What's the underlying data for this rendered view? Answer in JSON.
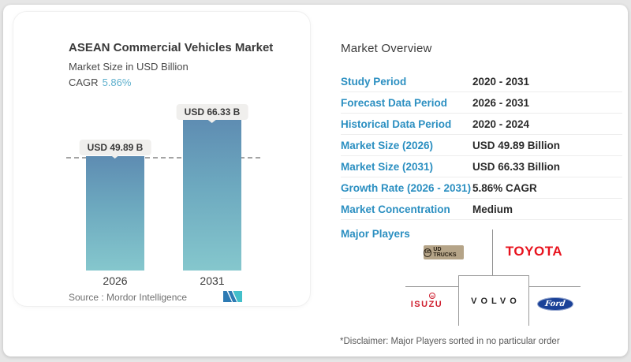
{
  "chart_card": {
    "title": "ASEAN Commercial Vehicles Market",
    "subtitle": "Market Size in USD Billion",
    "cagr_label": "CAGR",
    "cagr_value": "5.86%",
    "source_label": "Source :  Mordor Intelligence"
  },
  "chart_data": {
    "type": "bar",
    "title": "ASEAN Commercial Vehicles Market",
    "subtitle": "Market Size in USD Billion",
    "unit": "USD Billion",
    "cagr": "5.86%",
    "categories": [
      "2026",
      "2031"
    ],
    "values": [
      49.89,
      66.33
    ],
    "bar_value_labels": [
      "USD 49.89 B",
      "USD 66.33 B"
    ],
    "reference_line": "dashed line at 2026 value (49.89)",
    "ylim": [
      0,
      66.33
    ],
    "grid": false,
    "legend": "none",
    "colors": {
      "bar_gradient_top": "#5e8cb2",
      "bar_gradient_bottom": "#85c7cd",
      "dashed_line": "#a4a4a4",
      "value_pill_bg": "#f0efed"
    }
  },
  "overview": {
    "title": "Market Overview",
    "rows": [
      {
        "label": "Study Period",
        "value": "2020 - 2031"
      },
      {
        "label": "Forecast Data Period",
        "value": "2026 - 2031"
      },
      {
        "label": "Historical Data Period",
        "value": "2020 - 2024"
      },
      {
        "label": "Market Size (2026)",
        "value": "USD 49.89 Billion"
      },
      {
        "label": "Market Size (2031)",
        "value": "USD 66.33 Billion"
      },
      {
        "label": "Growth Rate (2026 - 2031)",
        "value": "5.86% CAGR"
      },
      {
        "label": "Market Concentration",
        "value": "Medium"
      }
    ],
    "major_players_label": "Major Players",
    "players": [
      {
        "name": "UD Trucks",
        "display": "UD TRUCKS",
        "emblem": "UD"
      },
      {
        "name": "Toyota",
        "display": "TOYOTA"
      },
      {
        "name": "Isuzu",
        "display": "ISUZU",
        "emblem": "M"
      },
      {
        "name": "Volvo",
        "display": "VOLVO"
      },
      {
        "name": "Ford",
        "display": "Ford"
      }
    ],
    "disclaimer": "*Disclaimer: Major Players sorted in no particular order"
  },
  "colors": {
    "accent_label_blue": "#2b8fc1",
    "cagr_teal": "#5fb0cd",
    "toyota_red": "#e8131e",
    "isuzu_red": "#cf1f2f",
    "ford_blue": "#1b4298",
    "ud_trucks_tan": "#b5a488",
    "divider": "#ededed",
    "grid_line_gray": "#8f8f8f",
    "page_bg": "#ffffff",
    "outer_bg": "#e6e6e6"
  }
}
